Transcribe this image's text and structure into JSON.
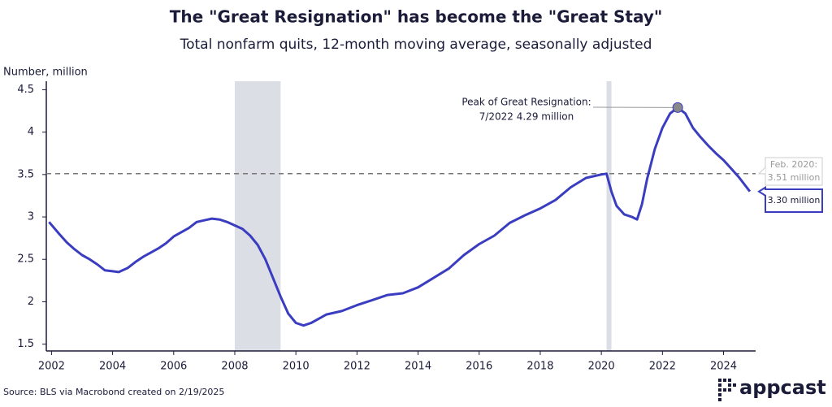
{
  "chart_data": {
    "type": "line",
    "title": "The \"Great Resignation\" has become the \"Great Stay\"",
    "subtitle": "Total nonfarm quits, 12-month moving average, seasonally adjusted",
    "y_label": "Number, million",
    "source": "Source: BLS via Macrobond created on 2/19/2025",
    "logo": "appcast",
    "x": [
      2001.92,
      2002.25,
      2002.5,
      2002.75,
      2003.0,
      2003.25,
      2003.5,
      2003.75,
      2004.0,
      2004.2,
      2004.5,
      2004.75,
      2005.0,
      2005.25,
      2005.5,
      2005.75,
      2006.0,
      2006.25,
      2006.5,
      2006.75,
      2007.0,
      2007.25,
      2007.5,
      2007.75,
      2008.0,
      2008.25,
      2008.5,
      2008.75,
      2009.0,
      2009.25,
      2009.5,
      2009.75,
      2010.0,
      2010.25,
      2010.5,
      2010.75,
      2011.0,
      2011.5,
      2012.0,
      2012.5,
      2013.0,
      2013.5,
      2014.0,
      2014.5,
      2015.0,
      2015.5,
      2016.0,
      2016.5,
      2017.0,
      2017.5,
      2018.0,
      2018.5,
      2019.0,
      2019.5,
      2020.0,
      2020.17,
      2020.33,
      2020.5,
      2020.75,
      2021.0,
      2021.17,
      2021.33,
      2021.5,
      2021.75,
      2022.0,
      2022.25,
      2022.5,
      2022.75,
      2023.0,
      2023.25,
      2023.5,
      2023.75,
      2024.0,
      2024.25,
      2024.5,
      2024.86
    ],
    "series": [
      {
        "name": "Total nonfarm quits",
        "color": "#3a3dc0",
        "end_label": "3.30 million",
        "values": [
          2.94,
          2.8,
          2.7,
          2.62,
          2.55,
          2.5,
          2.44,
          2.37,
          2.36,
          2.35,
          2.4,
          2.47,
          2.53,
          2.58,
          2.63,
          2.69,
          2.77,
          2.82,
          2.87,
          2.94,
          2.96,
          2.98,
          2.97,
          2.94,
          2.9,
          2.86,
          2.78,
          2.67,
          2.5,
          2.28,
          2.06,
          1.86,
          1.75,
          1.72,
          1.75,
          1.8,
          1.85,
          1.89,
          1.96,
          2.02,
          2.08,
          2.1,
          2.17,
          2.28,
          2.39,
          2.55,
          2.68,
          2.78,
          2.93,
          3.02,
          3.1,
          3.2,
          3.35,
          3.46,
          3.5,
          3.51,
          3.3,
          3.13,
          3.03,
          3.0,
          2.97,
          3.15,
          3.45,
          3.8,
          4.05,
          4.22,
          4.29,
          4.22,
          4.05,
          3.94,
          3.84,
          3.75,
          3.67,
          3.57,
          3.47,
          3.3
        ]
      }
    ],
    "shaded_periods": [
      [
        2008.0,
        2009.5
      ],
      [
        2020.17,
        2020.33
      ]
    ],
    "shade_color": "#dcdee6",
    "reference_line": {
      "value": 3.51,
      "label": [
        "Feb. 2020:",
        "3.51 million"
      ]
    },
    "peak_annotation": [
      "Peak of Great Resignation:",
      "7/2022 4.29 million"
    ],
    "xlim": [
      2001.83,
      2025.05
    ],
    "ylim": [
      1.42,
      4.6
    ],
    "xticks": [
      2002,
      2004,
      2006,
      2008,
      2010,
      2012,
      2014,
      2016,
      2018,
      2020,
      2022,
      2024
    ],
    "yticks": [
      1.5,
      2.0,
      2.5,
      3.0,
      3.5,
      4.0,
      4.5
    ],
    "grid": false
  }
}
